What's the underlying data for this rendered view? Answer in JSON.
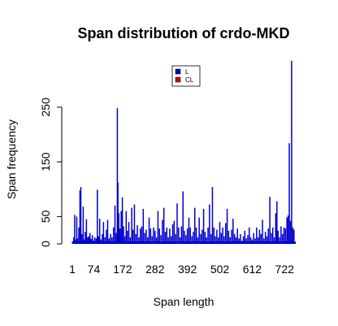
{
  "chart_data": {
    "type": "bar",
    "title": "Span distribution of crdo-MKD",
    "xlabel": "Span length",
    "ylabel": "Span frequency",
    "ylim": [
      0,
      330
    ],
    "yticks": [
      0,
      50,
      150,
      250
    ],
    "xtick_labels": [
      "1",
      "74",
      "172",
      "282",
      "392",
      "502",
      "612",
      "722"
    ],
    "xlim": [
      1,
      760
    ],
    "legend": {
      "placement": "top-center",
      "entries": [
        {
          "label": "L",
          "color": "#0000cc"
        },
        {
          "label": "CL",
          "color": "#cc0000"
        }
      ]
    },
    "series": [
      {
        "name": "L",
        "color": "#0000cc",
        "points": [
          {
            "x": 2,
            "y": 5
          },
          {
            "x": 6,
            "y": 12
          },
          {
            "x": 9,
            "y": 53
          },
          {
            "x": 12,
            "y": 8
          },
          {
            "x": 16,
            "y": 50
          },
          {
            "x": 19,
            "y": 10
          },
          {
            "x": 23,
            "y": 30
          },
          {
            "x": 27,
            "y": 98
          },
          {
            "x": 30,
            "y": 104
          },
          {
            "x": 34,
            "y": 18
          },
          {
            "x": 38,
            "y": 68
          },
          {
            "x": 41,
            "y": 8
          },
          {
            "x": 45,
            "y": 22
          },
          {
            "x": 49,
            "y": 45
          },
          {
            "x": 53,
            "y": 12
          },
          {
            "x": 57,
            "y": 14
          },
          {
            "x": 61,
            "y": 20
          },
          {
            "x": 65,
            "y": 9
          },
          {
            "x": 69,
            "y": 16
          },
          {
            "x": 73,
            "y": 6
          },
          {
            "x": 77,
            "y": 12
          },
          {
            "x": 82,
            "y": 10
          },
          {
            "x": 86,
            "y": 99
          },
          {
            "x": 90,
            "y": 14
          },
          {
            "x": 94,
            "y": 46
          },
          {
            "x": 98,
            "y": 8
          },
          {
            "x": 103,
            "y": 18
          },
          {
            "x": 107,
            "y": 40
          },
          {
            "x": 112,
            "y": 12
          },
          {
            "x": 117,
            "y": 26
          },
          {
            "x": 121,
            "y": 44
          },
          {
            "x": 126,
            "y": 10
          },
          {
            "x": 131,
            "y": 18
          },
          {
            "x": 136,
            "y": 12
          },
          {
            "x": 141,
            "y": 30
          },
          {
            "x": 146,
            "y": 70
          },
          {
            "x": 150,
            "y": 20
          },
          {
            "x": 154,
            "y": 248
          },
          {
            "x": 156,
            "y": 112
          },
          {
            "x": 159,
            "y": 56
          },
          {
            "x": 163,
            "y": 28
          },
          {
            "x": 167,
            "y": 60
          },
          {
            "x": 171,
            "y": 85
          },
          {
            "x": 175,
            "y": 32
          },
          {
            "x": 179,
            "y": 14
          },
          {
            "x": 184,
            "y": 60
          },
          {
            "x": 188,
            "y": 24
          },
          {
            "x": 193,
            "y": 40
          },
          {
            "x": 198,
            "y": 12
          },
          {
            "x": 203,
            "y": 66
          },
          {
            "x": 207,
            "y": 26
          },
          {
            "x": 212,
            "y": 72
          },
          {
            "x": 217,
            "y": 18
          },
          {
            "x": 222,
            "y": 34
          },
          {
            "x": 227,
            "y": 12
          },
          {
            "x": 232,
            "y": 28
          },
          {
            "x": 237,
            "y": 32
          },
          {
            "x": 242,
            "y": 64
          },
          {
            "x": 247,
            "y": 20
          },
          {
            "x": 252,
            "y": 26
          },
          {
            "x": 257,
            "y": 12
          },
          {
            "x": 262,
            "y": 48
          },
          {
            "x": 267,
            "y": 28
          },
          {
            "x": 272,
            "y": 14
          },
          {
            "x": 277,
            "y": 30
          },
          {
            "x": 282,
            "y": 24
          },
          {
            "x": 287,
            "y": 12
          },
          {
            "x": 292,
            "y": 60
          },
          {
            "x": 297,
            "y": 28
          },
          {
            "x": 302,
            "y": 16
          },
          {
            "x": 307,
            "y": 44
          },
          {
            "x": 312,
            "y": 66
          },
          {
            "x": 317,
            "y": 22
          },
          {
            "x": 322,
            "y": 30
          },
          {
            "x": 327,
            "y": 12
          },
          {
            "x": 332,
            "y": 28
          },
          {
            "x": 337,
            "y": 14
          },
          {
            "x": 342,
            "y": 36
          },
          {
            "x": 347,
            "y": 42
          },
          {
            "x": 352,
            "y": 18
          },
          {
            "x": 357,
            "y": 74
          },
          {
            "x": 362,
            "y": 30
          },
          {
            "x": 367,
            "y": 12
          },
          {
            "x": 372,
            "y": 32
          },
          {
            "x": 377,
            "y": 96
          },
          {
            "x": 382,
            "y": 24
          },
          {
            "x": 387,
            "y": 16
          },
          {
            "x": 392,
            "y": 28
          },
          {
            "x": 397,
            "y": 48
          },
          {
            "x": 402,
            "y": 30
          },
          {
            "x": 407,
            "y": 14
          },
          {
            "x": 412,
            "y": 22
          },
          {
            "x": 417,
            "y": 66
          },
          {
            "x": 422,
            "y": 30
          },
          {
            "x": 427,
            "y": 12
          },
          {
            "x": 432,
            "y": 48
          },
          {
            "x": 437,
            "y": 18
          },
          {
            "x": 442,
            "y": 26
          },
          {
            "x": 447,
            "y": 64
          },
          {
            "x": 452,
            "y": 22
          },
          {
            "x": 457,
            "y": 12
          },
          {
            "x": 462,
            "y": 30
          },
          {
            "x": 467,
            "y": 72
          },
          {
            "x": 472,
            "y": 18
          },
          {
            "x": 477,
            "y": 104
          },
          {
            "x": 482,
            "y": 30
          },
          {
            "x": 487,
            "y": 14
          },
          {
            "x": 492,
            "y": 26
          },
          {
            "x": 497,
            "y": 12
          },
          {
            "x": 502,
            "y": 40
          },
          {
            "x": 507,
            "y": 20
          },
          {
            "x": 512,
            "y": 30
          },
          {
            "x": 517,
            "y": 14
          },
          {
            "x": 522,
            "y": 38
          },
          {
            "x": 527,
            "y": 64
          },
          {
            "x": 532,
            "y": 24
          },
          {
            "x": 537,
            "y": 12
          },
          {
            "x": 542,
            "y": 26
          },
          {
            "x": 547,
            "y": 46
          },
          {
            "x": 552,
            "y": 18
          },
          {
            "x": 557,
            "y": 12
          },
          {
            "x": 562,
            "y": 28
          },
          {
            "x": 567,
            "y": 10
          },
          {
            "x": 572,
            "y": 18
          },
          {
            "x": 577,
            "y": 6
          },
          {
            "x": 582,
            "y": 14
          },
          {
            "x": 587,
            "y": 24
          },
          {
            "x": 592,
            "y": 10
          },
          {
            "x": 597,
            "y": 16
          },
          {
            "x": 602,
            "y": 30
          },
          {
            "x": 607,
            "y": 12
          },
          {
            "x": 612,
            "y": 8
          },
          {
            "x": 617,
            "y": 20
          },
          {
            "x": 622,
            "y": 10
          },
          {
            "x": 627,
            "y": 30
          },
          {
            "x": 632,
            "y": 12
          },
          {
            "x": 637,
            "y": 26
          },
          {
            "x": 642,
            "y": 18
          },
          {
            "x": 647,
            "y": 44
          },
          {
            "x": 652,
            "y": 10
          },
          {
            "x": 657,
            "y": 22
          },
          {
            "x": 662,
            "y": 14
          },
          {
            "x": 667,
            "y": 28
          },
          {
            "x": 672,
            "y": 86
          },
          {
            "x": 677,
            "y": 20
          },
          {
            "x": 682,
            "y": 30
          },
          {
            "x": 687,
            "y": 12
          },
          {
            "x": 692,
            "y": 56
          },
          {
            "x": 696,
            "y": 78
          },
          {
            "x": 700,
            "y": 24
          },
          {
            "x": 705,
            "y": 12
          },
          {
            "x": 710,
            "y": 32
          },
          {
            "x": 715,
            "y": 18
          },
          {
            "x": 720,
            "y": 30
          },
          {
            "x": 725,
            "y": 28
          },
          {
            "x": 730,
            "y": 48
          },
          {
            "x": 734,
            "y": 52
          },
          {
            "x": 738,
            "y": 184
          },
          {
            "x": 742,
            "y": 42
          },
          {
            "x": 746,
            "y": 335
          },
          {
            "x": 750,
            "y": 30
          },
          {
            "x": 754,
            "y": 26
          }
        ]
      },
      {
        "name": "CL",
        "color": "#cc0000",
        "points": []
      }
    ]
  }
}
